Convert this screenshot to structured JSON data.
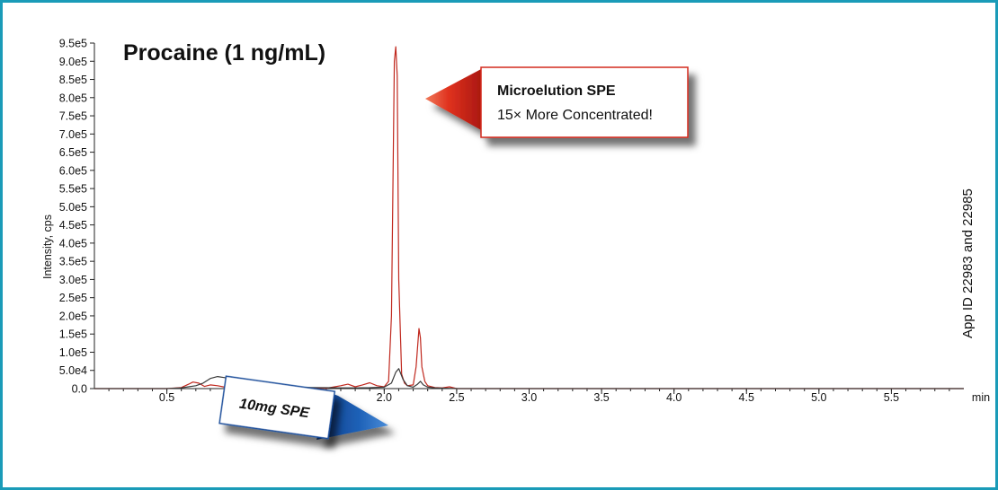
{
  "chart_data": {
    "type": "line",
    "title": "Procaine (1 ng/mL)",
    "ylabel": "Intensity, cps",
    "xunit": "min",
    "xlim": [
      0.0,
      6.0
    ],
    "ylim": [
      0,
      950000
    ],
    "x_ticks": [
      0.5,
      1.0,
      1.5,
      2.0,
      2.5,
      3.0,
      3.5,
      4.0,
      4.5,
      5.0,
      5.5
    ],
    "x_tick_labels": [
      "0.5",
      "1.0",
      "1.5",
      "2.0",
      "2.5",
      "3.0",
      "3.5",
      "4.0",
      "4.5",
      "5.0",
      "5.5"
    ],
    "y_ticks": [
      0,
      50000,
      100000,
      150000,
      200000,
      250000,
      300000,
      350000,
      400000,
      450000,
      500000,
      550000,
      600000,
      650000,
      700000,
      750000,
      800000,
      850000,
      900000,
      950000
    ],
    "y_tick_labels": [
      "0.0",
      "5.0e4",
      "1.0e5",
      "1.5e5",
      "2.0e5",
      "2.5e5",
      "3.0e5",
      "3.5e5",
      "4.0e5",
      "4.5e5",
      "5.0e5",
      "5.5e5",
      "6.0e5",
      "6.5e5",
      "7.0e5",
      "7.5e5",
      "8.0e5",
      "8.5e5",
      "9.0e5",
      "9.5e5"
    ],
    "grid": false,
    "series": [
      {
        "color": "#c0281e",
        "x": [
          0.0,
          0.5,
          0.6,
          0.65,
          0.68,
          0.72,
          0.76,
          0.8,
          0.85,
          0.9,
          0.95,
          1.0,
          1.05,
          1.1,
          1.15,
          1.2,
          1.25,
          1.3,
          1.35,
          1.4,
          1.5,
          1.6,
          1.7,
          1.75,
          1.8,
          1.85,
          1.9,
          1.95,
          2.0,
          2.03,
          2.05,
          2.07,
          2.08,
          2.09,
          2.1,
          2.12,
          2.14,
          2.16,
          2.2,
          2.22,
          2.24,
          2.25,
          2.26,
          2.28,
          2.3,
          2.35,
          2.4,
          2.45,
          2.5,
          3.0,
          4.0,
          5.0,
          6.0
        ],
        "y": [
          0,
          0,
          3000,
          12000,
          18000,
          15000,
          6000,
          10000,
          8000,
          4000,
          6000,
          12000,
          15000,
          8000,
          4000,
          14000,
          10000,
          6000,
          4000,
          3000,
          2000,
          1000,
          8000,
          12000,
          5000,
          10000,
          16000,
          8000,
          5000,
          20000,
          200000,
          900000,
          940000,
          860000,
          300000,
          40000,
          15000,
          8000,
          10000,
          60000,
          165000,
          140000,
          60000,
          20000,
          8000,
          3000,
          2000,
          5000,
          0,
          0,
          0,
          0,
          0
        ]
      },
      {
        "color": "#3a3a3a",
        "x": [
          0.0,
          0.5,
          0.6,
          0.65,
          0.7,
          0.75,
          0.8,
          0.85,
          0.9,
          0.95,
          1.0,
          1.05,
          1.1,
          1.15,
          1.2,
          1.3,
          1.4,
          1.5,
          1.6,
          1.7,
          1.8,
          1.9,
          2.0,
          2.05,
          2.08,
          2.1,
          2.13,
          2.16,
          2.2,
          2.23,
          2.25,
          2.27,
          2.3,
          2.35,
          2.5,
          3.0,
          4.0,
          5.0,
          6.0
        ],
        "y": [
          0,
          0,
          2000,
          5000,
          8000,
          15000,
          28000,
          33000,
          30000,
          24000,
          18000,
          12000,
          15000,
          10000,
          7000,
          5000,
          4000,
          3000,
          2500,
          2000,
          2000,
          2500,
          4000,
          15000,
          45000,
          55000,
          25000,
          8000,
          4000,
          12000,
          20000,
          10000,
          4000,
          2000,
          0,
          0,
          0,
          0,
          0
        ]
      }
    ],
    "annotations": [
      {
        "title": "Microelution SPE",
        "text": "15× More Concentrated!"
      },
      {
        "text": "10mg SPE"
      },
      {
        "text": "App ID 22983 and 22985"
      }
    ]
  },
  "colors": {
    "frame": "#1a9bb8",
    "red_callout": "#d42a1f",
    "blue_callout": "#1d4f9c"
  }
}
